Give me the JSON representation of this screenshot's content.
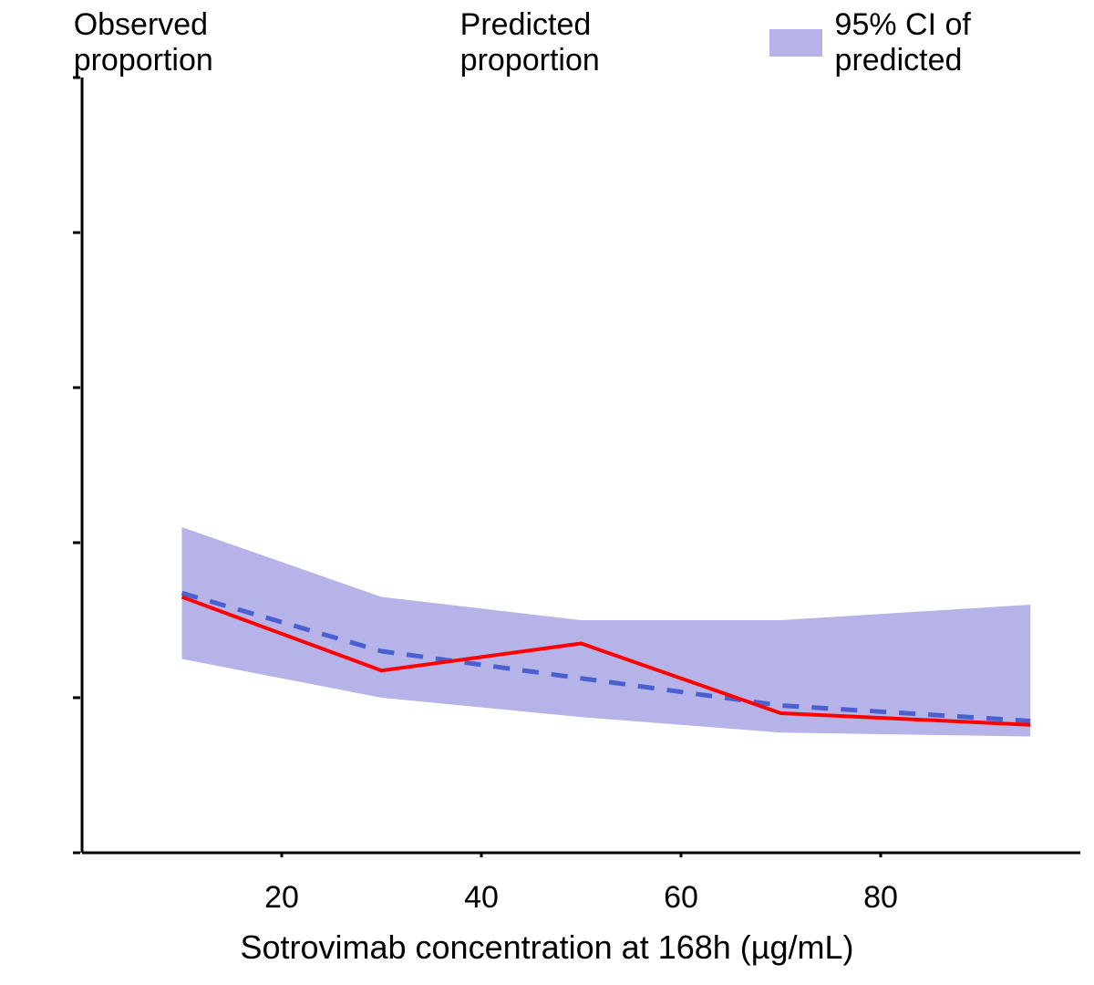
{
  "legend": {
    "observed": "Observed proportion",
    "predicted": "Predicted proportion",
    "ci": "95% CI of predicted"
  },
  "chart": {
    "type": "line",
    "background_color": "#ffffff",
    "axis_color": "#000000",
    "axis_line_width": 3,
    "tick_length": 20,
    "xlabel": "Sotrovimab concentration at 168h (µg/mL)",
    "xlabel_fontsize": 36,
    "tick_fontsize": 34,
    "legend_fontsize": 34,
    "xlim": [
      0,
      100
    ],
    "ylim": [
      0,
      1.0
    ],
    "xticks": [
      20,
      40,
      60,
      80
    ],
    "yticks": [
      0,
      0.2,
      0.4,
      0.6,
      0.8,
      1.0
    ],
    "observed": {
      "color": "#ff0000",
      "width": 4,
      "dash": "none",
      "x": [
        10,
        30,
        50,
        70,
        95
      ],
      "y": [
        0.33,
        0.235,
        0.27,
        0.18,
        0.165
      ]
    },
    "predicted": {
      "color": "#4a5fd0",
      "width": 5,
      "dash": "18,14",
      "x": [
        10,
        30,
        50,
        70,
        95
      ],
      "y": [
        0.335,
        0.26,
        0.225,
        0.19,
        0.17
      ]
    },
    "ci": {
      "color": "#a8a6e3",
      "opacity": 0.85,
      "x": [
        10,
        30,
        50,
        70,
        95
      ],
      "upper": [
        0.42,
        0.33,
        0.3,
        0.3,
        0.32
      ],
      "lower": [
        0.25,
        0.2,
        0.175,
        0.155,
        0.15
      ]
    }
  }
}
